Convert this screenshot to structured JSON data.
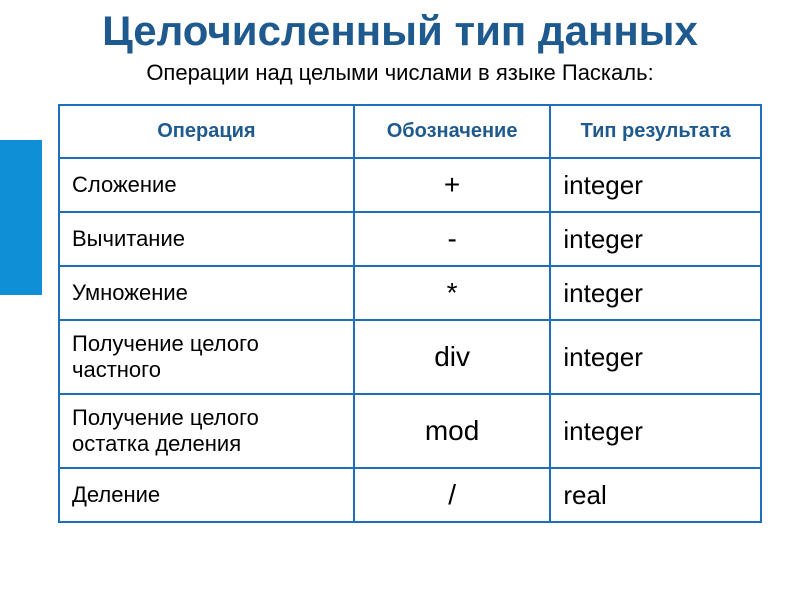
{
  "title": "Целочисленный тип данных",
  "subtitle": "Операции над целыми числами в языке Паскаль:",
  "title_color": "#1f5a8e",
  "title_fontsize": 42,
  "subtitle_color": "#000000",
  "subtitle_fontsize": 22,
  "accent_color": "#0f8fd6",
  "table": {
    "border_color": "#1f6fb8",
    "header_bg": "#ffffff",
    "header_color": "#1f5a8e",
    "header_fontsize": 20,
    "columns": [
      "Операция",
      "Обозначение",
      "Тип результата"
    ],
    "rows": [
      {
        "op": "Сложение",
        "sym": "+",
        "res": "integer"
      },
      {
        "op": "Вычитание",
        "sym": "-",
        "res": "integer"
      },
      {
        "op": "Умножение",
        "sym": "*",
        "res": "integer"
      },
      {
        "op": "Получение целого частного",
        "sym": "div",
        "res": "integer"
      },
      {
        "op": "Получение целого остатка деления",
        "sym": "mod",
        "res": "integer"
      },
      {
        "op": "Деление",
        "sym": "/",
        "res": "real"
      }
    ]
  }
}
